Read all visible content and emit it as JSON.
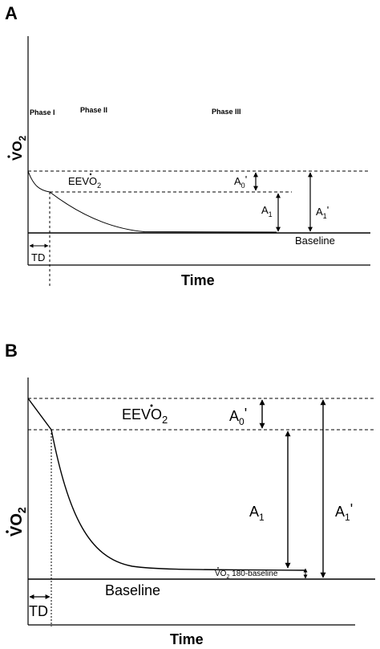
{
  "panel_a": {
    "label": "A",
    "phase_1": "Phase I",
    "phase_2": "Phase II",
    "phase_3": "Phase III",
    "y_label": "VO",
    "y_sub": "2",
    "eevo2_main": "EEVO",
    "eevo2_sub": "2",
    "a0_main": "A",
    "a0_sub": "0",
    "a0_prime": "'",
    "a1_main": "A",
    "a1_sub": "1",
    "a1p_main": "A",
    "a1p_sub": "1",
    "a1p_prime": "'",
    "baseline": "Baseline",
    "td": "TD",
    "x_label": "Time"
  },
  "panel_b": {
    "label": "B",
    "y_label": "VO",
    "y_sub": "2",
    "eevo2_main": "EEVO",
    "eevo2_sub": "2",
    "a0_main": "A",
    "a0_sub": "0",
    "a0_prime": "'",
    "a1_main": "A",
    "a1_sub": "1",
    "a1p_main": "A",
    "a1p_sub": "1",
    "a1p_prime": "'",
    "vo2_180_main": "VO",
    "vo2_180_sub": "2",
    "vo2_180_rest": " 180-baseline",
    "baseline": "Baseline",
    "td": "TD",
    "x_label": "Time"
  },
  "colors": {
    "ink": "#000000",
    "background": "#ffffff"
  }
}
